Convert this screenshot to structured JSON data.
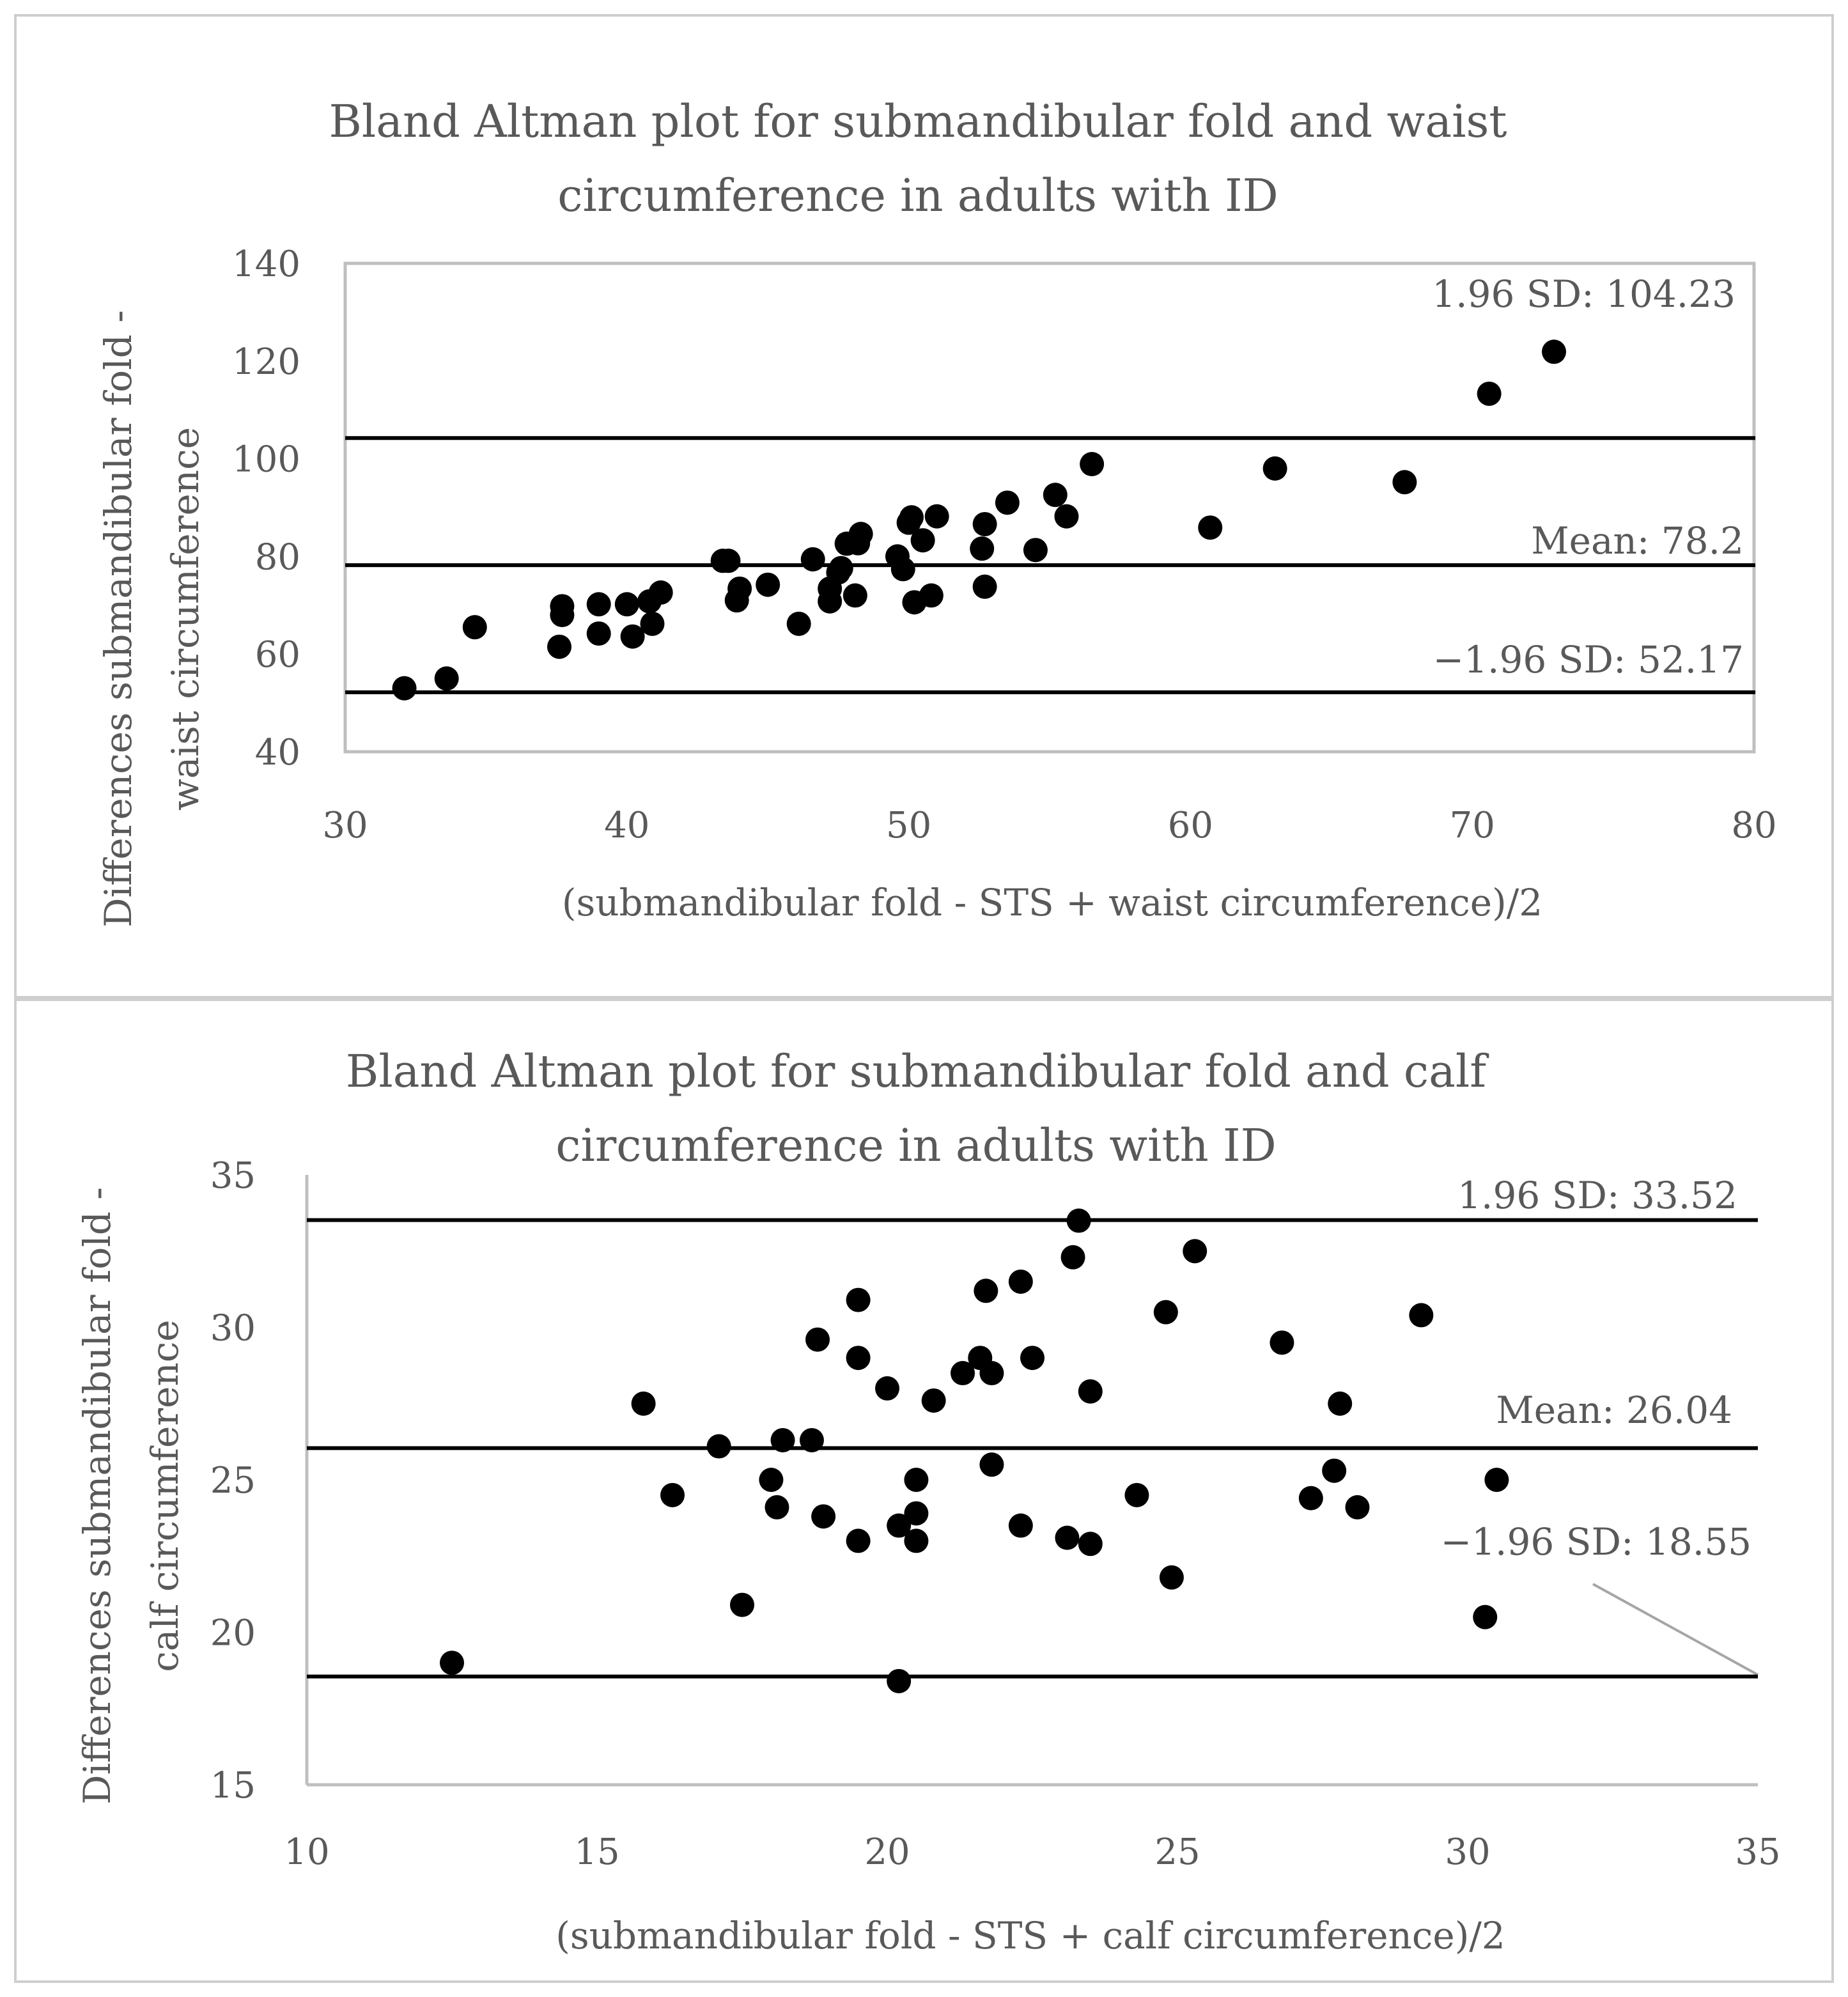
{
  "charts": [
    {
      "title_lines": [
        "Bland Altman plot for submandibular fold and waist",
        "circumference in adults with ID"
      ],
      "ylabel_lines": [
        "Differences submandibular fold -",
        "waist circumference"
      ],
      "xlabel": "(submandibular fold - STS + waist circumference)/2",
      "xticks": [
        "30",
        "40",
        "50",
        "60",
        "70",
        "80"
      ],
      "yticks": [
        "40",
        "60",
        "80",
        "100",
        "120",
        "140"
      ],
      "ref_labels": {
        "upper": "1.96 SD: 104.23",
        "mean": "Mean: 78.2",
        "lower": "−1.96 SD: 52.17"
      }
    },
    {
      "title_lines": [
        "Bland Altman plot for submandibular fold and calf",
        "circumference in adults with ID"
      ],
      "ylabel_lines": [
        "Differences submandibular fold -",
        "calf circumference"
      ],
      "xlabel": "(submandibular fold - STS + calf circumference)/2",
      "xticks": [
        "10",
        "15",
        "20",
        "25",
        "30",
        "35"
      ],
      "yticks": [
        "15",
        "20",
        "25",
        "30",
        "35"
      ],
      "ref_labels": {
        "upper": "1.96 SD: 33.52",
        "mean": "Mean: 26.04",
        "lower": "−1.96 SD: 18.55"
      }
    }
  ],
  "chart_data": [
    {
      "type": "scatter",
      "title": "Bland Altman plot for submandibular fold and waist circumference in adults with ID",
      "xlabel": "(submandibular fold - STS + waist circumference)/2",
      "ylabel": "Differences submandibular fold - waist circumference",
      "xlim": [
        30,
        80
      ],
      "ylim": [
        40,
        140
      ],
      "reference_lines": [
        {
          "label": "1.96 SD: 104.23",
          "y": 104.23
        },
        {
          "label": "Mean: 78.2",
          "y": 78.2
        },
        {
          "label": "−1.96 SD: 52.17",
          "y": 52.17
        }
      ],
      "points": [
        [
          32.1,
          53
        ],
        [
          33.6,
          55
        ],
        [
          34.6,
          65.5
        ],
        [
          37.6,
          61.5
        ],
        [
          37.7,
          68
        ],
        [
          37.7,
          69.8
        ],
        [
          39,
          64.2
        ],
        [
          39,
          70.2
        ],
        [
          40,
          70.2
        ],
        [
          40.2,
          63.6
        ],
        [
          40.8,
          70.8
        ],
        [
          40.9,
          66.2
        ],
        [
          41.2,
          72.6
        ],
        [
          43.4,
          79.1
        ],
        [
          43.6,
          79.1
        ],
        [
          43.9,
          71
        ],
        [
          44,
          73.4
        ],
        [
          45,
          74.2
        ],
        [
          46.1,
          66.2
        ],
        [
          46.6,
          79.4
        ],
        [
          47.2,
          70.8
        ],
        [
          47.2,
          73.4
        ],
        [
          47.5,
          76.7
        ],
        [
          47.6,
          77.6
        ],
        [
          47.8,
          82.6
        ],
        [
          48.1,
          72
        ],
        [
          48.2,
          82.7
        ],
        [
          48.3,
          84.6
        ],
        [
          49.6,
          80
        ],
        [
          49.8,
          77.4
        ],
        [
          50,
          86.9
        ],
        [
          50.1,
          88
        ],
        [
          50.2,
          70.6
        ],
        [
          50.5,
          83.3
        ],
        [
          50.8,
          72
        ],
        [
          51,
          88.2
        ],
        [
          52.6,
          81.6
        ],
        [
          52.7,
          86.6
        ],
        [
          52.7,
          73.8
        ],
        [
          53.5,
          91
        ],
        [
          54.5,
          81.3
        ],
        [
          55.2,
          92.6
        ],
        [
          55.6,
          88.2
        ],
        [
          56.5,
          98.9
        ],
        [
          60.7,
          85.9
        ],
        [
          63,
          98
        ],
        [
          67.6,
          95.2
        ],
        [
          70.6,
          113.3
        ],
        [
          72.9,
          121.9
        ]
      ]
    },
    {
      "type": "scatter",
      "title": "Bland Altman plot for submandibular fold and calf circumference in adults with ID",
      "xlabel": "(submandibular fold - STS + calf circumference)/2",
      "ylabel": "Differences submandibular fold - calf circumference",
      "xlim": [
        10,
        35
      ],
      "ylim": [
        15,
        35
      ],
      "reference_lines": [
        {
          "label": "1.96 SD: 33.52",
          "y": 33.52
        },
        {
          "label": "Mean: 26.04",
          "y": 26.04
        },
        {
          "label": "−1.96 SD: 18.55",
          "y": 18.55
        }
      ],
      "points": [
        [
          12.5,
          19
        ],
        [
          15.8,
          27.5
        ],
        [
          16.3,
          24.5
        ],
        [
          17.1,
          26.1
        ],
        [
          17.5,
          20.9
        ],
        [
          18,
          25
        ],
        [
          18.1,
          24.1
        ],
        [
          18.2,
          26.3
        ],
        [
          18.7,
          26.3
        ],
        [
          18.8,
          29.6
        ],
        [
          18.9,
          23.8
        ],
        [
          19.5,
          30.9
        ],
        [
          19.5,
          29
        ],
        [
          19.5,
          23
        ],
        [
          20,
          28
        ],
        [
          20.2,
          18.4
        ],
        [
          20.2,
          23.5
        ],
        [
          20.5,
          23.9
        ],
        [
          20.5,
          25
        ],
        [
          20.5,
          23
        ],
        [
          20.8,
          27.6
        ],
        [
          21.3,
          28.5
        ],
        [
          21.6,
          29
        ],
        [
          21.7,
          31.2
        ],
        [
          21.8,
          28.5
        ],
        [
          21.8,
          25.5
        ],
        [
          22.3,
          31.5
        ],
        [
          22.3,
          23.5
        ],
        [
          22.5,
          29
        ],
        [
          23.1,
          23.1
        ],
        [
          23.2,
          32.3
        ],
        [
          23.3,
          33.5
        ],
        [
          23.5,
          27.9
        ],
        [
          23.5,
          22.9
        ],
        [
          24.3,
          24.5
        ],
        [
          24.8,
          30.5
        ],
        [
          24.9,
          21.8
        ],
        [
          25.3,
          32.5
        ],
        [
          26.8,
          29.5
        ],
        [
          27.3,
          24.4
        ],
        [
          27.7,
          25.3
        ],
        [
          27.8,
          27.5
        ],
        [
          28.1,
          24.1
        ],
        [
          29.2,
          30.4
        ],
        [
          30.3,
          20.5
        ],
        [
          30.5,
          25
        ]
      ]
    }
  ]
}
